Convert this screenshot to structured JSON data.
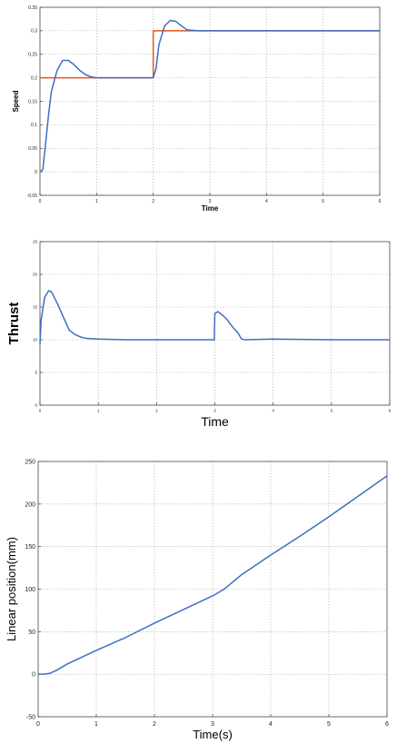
{
  "chart_data": [
    {
      "type": "line",
      "title": "",
      "xlabel": "Time",
      "ylabel": "Speed",
      "xlim": [
        0,
        6
      ],
      "ylim": [
        -0.05,
        0.35
      ],
      "xticks": [
        0,
        1,
        2,
        3,
        4,
        5,
        6
      ],
      "yticks": [
        -0.05,
        0,
        0.05,
        0.1,
        0.15,
        0.2,
        0.25,
        0.3,
        0.35
      ],
      "xtick_labels": [
        "0",
        "1",
        "2",
        "3",
        "4",
        "5",
        "6"
      ],
      "ytick_labels": [
        "-0.05",
        "0",
        "0.05",
        "0.1",
        "0.15",
        "0.2",
        "0.25",
        "0.3",
        "0.35"
      ],
      "grid": true,
      "series": [
        {
          "color": "#e8541f",
          "x": [
            0,
            2,
            2,
            6
          ],
          "y": [
            0.2,
            0.2,
            0.3,
            0.3
          ]
        },
        {
          "color": "#3d6fc4",
          "x": [
            0,
            0.05,
            0.1,
            0.15,
            0.2,
            0.3,
            0.4,
            0.5,
            0.6,
            0.7,
            0.8,
            0.9,
            1.0,
            1.2,
            1.5,
            2.0,
            2.05,
            2.1,
            2.2,
            2.3,
            2.4,
            2.5,
            2.6,
            2.8,
            3.0,
            4.0,
            5.0,
            6.0
          ],
          "y": [
            0.0,
            0.005,
            0.06,
            0.12,
            0.17,
            0.215,
            0.237,
            0.237,
            0.228,
            0.216,
            0.207,
            0.202,
            0.2,
            0.2,
            0.2,
            0.2,
            0.22,
            0.27,
            0.31,
            0.322,
            0.32,
            0.31,
            0.302,
            0.3,
            0.3,
            0.3,
            0.3,
            0.3
          ]
        }
      ]
    },
    {
      "type": "line",
      "title": "",
      "xlabel": "Time",
      "ylabel": "Thrust",
      "xlim": [
        0,
        6
      ],
      "ylim": [
        0,
        25
      ],
      "xticks": [
        0,
        1,
        2,
        3,
        4,
        5,
        6
      ],
      "yticks": [
        0,
        5,
        10,
        15,
        20,
        25
      ],
      "xtick_labels": [
        "0",
        "1",
        "2",
        "3",
        "4",
        "5",
        "6"
      ],
      "ytick_labels": [
        "0",
        "5",
        "10",
        "15",
        "20",
        "25"
      ],
      "grid": true,
      "series": [
        {
          "color": "#3d6fc4",
          "x": [
            0,
            0.02,
            0.08,
            0.15,
            0.2,
            0.3,
            0.4,
            0.5,
            0.6,
            0.7,
            0.8,
            1.0,
            1.5,
            2.0,
            2.5,
            2.99,
            3.0,
            3.05,
            3.1,
            3.2,
            3.3,
            3.4,
            3.45,
            3.5,
            4.0,
            5.0,
            6.0
          ],
          "y": [
            9.3,
            13,
            16.5,
            17.5,
            17.3,
            15.5,
            13.5,
            11.5,
            10.8,
            10.4,
            10.2,
            10.1,
            10.0,
            10.0,
            10.0,
            10.0,
            14.0,
            14.3,
            14.0,
            13.2,
            12.0,
            11.0,
            10.2,
            10.0,
            10.1,
            10.0,
            10.0
          ]
        }
      ]
    },
    {
      "type": "line",
      "title": "",
      "xlabel": "Time(s)",
      "ylabel": "Linear position(mm)",
      "xlim": [
        0,
        6
      ],
      "ylim": [
        -50,
        250
      ],
      "xticks": [
        0,
        1,
        2,
        3,
        4,
        5,
        6
      ],
      "yticks": [
        -50,
        0,
        50,
        100,
        150,
        200,
        250
      ],
      "xtick_labels": [
        "0",
        "1",
        "2",
        "3",
        "4",
        "5",
        "6"
      ],
      "ytick_labels": [
        "-50",
        "0",
        "50",
        "100",
        "150",
        "200",
        "250"
      ],
      "grid": true,
      "series": [
        {
          "color": "#3d6fc4",
          "x": [
            0,
            0.1,
            0.2,
            0.3,
            0.5,
            1.0,
            1.5,
            2.0,
            2.5,
            3.0,
            3.2,
            3.5,
            4.0,
            4.5,
            5.0,
            5.5,
            6.0
          ],
          "y": [
            0,
            0,
            1,
            4,
            12,
            28,
            43,
            60,
            76,
            92,
            100,
            117,
            140,
            162,
            185,
            209,
            233
          ]
        }
      ]
    }
  ]
}
